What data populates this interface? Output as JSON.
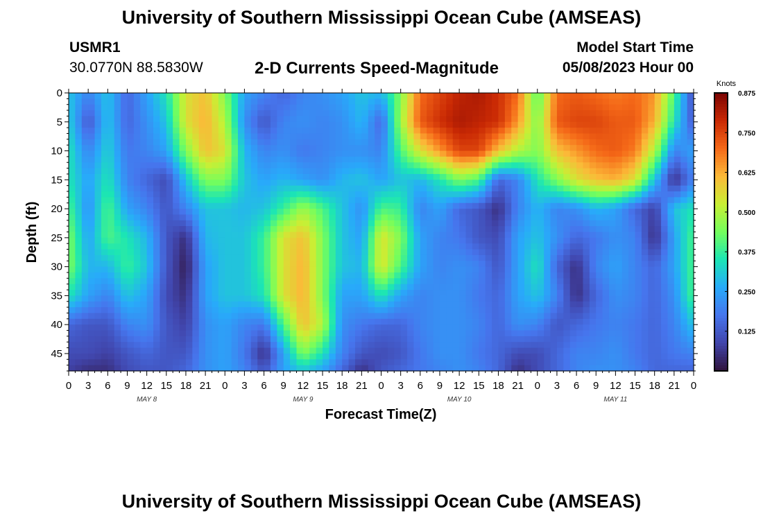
{
  "header": {
    "title": "University of Southern Mississippi Ocean Cube (AMSEAS)",
    "station": "USMR1",
    "coords": "30.0770N  88.5830W",
    "plot_title": "2-D Currents Speed-Magnitude",
    "model_start_label": "Model Start Time",
    "model_start_value": "05/08/2023 Hour 00"
  },
  "footer": {
    "title": "University of Southern Mississippi Ocean Cube (AMSEAS)"
  },
  "chart_data": {
    "type": "heatmap",
    "title": "2-D Currents Speed-Magnitude",
    "xlabel": "Forecast Time(Z)",
    "ylabel": "Depth (ft)",
    "x_range_hours": [
      0,
      96
    ],
    "y_range_ft": [
      0,
      48
    ],
    "x_tick_labels": [
      "0",
      "3",
      "6",
      "9",
      "12",
      "15",
      "18",
      "21",
      "0",
      "3",
      "6",
      "9",
      "12",
      "15",
      "18",
      "21",
      "0",
      "3",
      "6",
      "9",
      "12",
      "15",
      "18",
      "21",
      "0",
      "3",
      "6",
      "9",
      "12",
      "15",
      "18",
      "21",
      "0"
    ],
    "day_labels": [
      {
        "label": "MAY 8",
        "hour": 12
      },
      {
        "label": "MAY 9",
        "hour": 36
      },
      {
        "label": "MAY 10",
        "hour": 60
      },
      {
        "label": "MAY 11",
        "hour": 84
      }
    ],
    "y_tick_labels": [
      "0",
      "5",
      "10",
      "15",
      "20",
      "25",
      "30",
      "35",
      "40",
      "45"
    ],
    "colorbar": {
      "units": "Knots",
      "min": 0,
      "max": 0.875,
      "tick_labels": [
        "0.875",
        "0.750",
        "0.625",
        "0.500",
        "0.375",
        "0.250",
        "0.125"
      ],
      "tick_values": [
        0.875,
        0.75,
        0.625,
        0.5,
        0.375,
        0.25,
        0.125
      ]
    },
    "depths_ft": [
      0,
      5,
      10,
      15,
      20,
      25,
      30,
      35,
      40,
      45,
      48
    ],
    "hours": [
      0,
      3,
      6,
      9,
      12,
      15,
      18,
      21,
      24,
      27,
      30,
      33,
      36,
      39,
      42,
      45,
      48,
      51,
      54,
      57,
      60,
      63,
      66,
      69,
      72,
      75,
      78,
      81,
      84,
      87,
      90,
      93,
      96
    ],
    "values_knots": [
      [
        0.3,
        0.2,
        0.3,
        0.15,
        0.25,
        0.35,
        0.55,
        0.6,
        0.45,
        0.25,
        0.2,
        0.15,
        0.2,
        0.22,
        0.25,
        0.3,
        0.28,
        0.45,
        0.7,
        0.75,
        0.8,
        0.82,
        0.78,
        0.7,
        0.4,
        0.7,
        0.72,
        0.7,
        0.68,
        0.7,
        0.65,
        0.4,
        0.1
      ],
      [
        0.32,
        0.12,
        0.3,
        0.15,
        0.22,
        0.3,
        0.55,
        0.62,
        0.5,
        0.22,
        0.12,
        0.2,
        0.22,
        0.2,
        0.22,
        0.28,
        0.15,
        0.48,
        0.72,
        0.78,
        0.82,
        0.8,
        0.78,
        0.65,
        0.45,
        0.72,
        0.75,
        0.75,
        0.72,
        0.72,
        0.62,
        0.35,
        0.12
      ],
      [
        0.35,
        0.2,
        0.32,
        0.18,
        0.2,
        0.25,
        0.45,
        0.6,
        0.55,
        0.28,
        0.2,
        0.22,
        0.18,
        0.2,
        0.22,
        0.22,
        0.2,
        0.4,
        0.55,
        0.65,
        0.75,
        0.75,
        0.6,
        0.5,
        0.45,
        0.6,
        0.65,
        0.7,
        0.72,
        0.68,
        0.5,
        0.2,
        0.25
      ],
      [
        0.35,
        0.25,
        0.35,
        0.2,
        0.15,
        0.1,
        0.3,
        0.45,
        0.45,
        0.3,
        0.25,
        0.28,
        0.25,
        0.22,
        0.28,
        0.3,
        0.25,
        0.3,
        0.28,
        0.35,
        0.45,
        0.4,
        0.15,
        0.2,
        0.35,
        0.45,
        0.55,
        0.6,
        0.62,
        0.55,
        0.3,
        0.05,
        0.2
      ],
      [
        0.4,
        0.22,
        0.4,
        0.25,
        0.2,
        0.12,
        0.2,
        0.3,
        0.3,
        0.28,
        0.3,
        0.38,
        0.48,
        0.4,
        0.3,
        0.22,
        0.4,
        0.38,
        0.2,
        0.25,
        0.15,
        0.12,
        0.05,
        0.2,
        0.28,
        0.2,
        0.22,
        0.28,
        0.25,
        0.15,
        0.08,
        0.3,
        0.35
      ],
      [
        0.45,
        0.25,
        0.4,
        0.35,
        0.28,
        0.12,
        0.05,
        0.28,
        0.3,
        0.3,
        0.38,
        0.55,
        0.6,
        0.45,
        0.3,
        0.25,
        0.55,
        0.45,
        0.25,
        0.2,
        0.18,
        0.12,
        0.1,
        0.25,
        0.3,
        0.22,
        0.15,
        0.18,
        0.22,
        0.2,
        0.05,
        0.25,
        0.4
      ],
      [
        0.45,
        0.28,
        0.28,
        0.38,
        0.3,
        0.12,
        0.02,
        0.25,
        0.3,
        0.3,
        0.38,
        0.55,
        0.62,
        0.45,
        0.3,
        0.28,
        0.55,
        0.4,
        0.25,
        0.2,
        0.22,
        0.2,
        0.12,
        0.25,
        0.35,
        0.15,
        0.05,
        0.2,
        0.25,
        0.2,
        0.15,
        0.25,
        0.4
      ],
      [
        0.35,
        0.25,
        0.2,
        0.3,
        0.25,
        0.1,
        0.05,
        0.25,
        0.3,
        0.3,
        0.35,
        0.55,
        0.62,
        0.45,
        0.25,
        0.25,
        0.35,
        0.25,
        0.2,
        0.22,
        0.22,
        0.18,
        0.15,
        0.25,
        0.3,
        0.2,
        0.05,
        0.15,
        0.22,
        0.2,
        0.15,
        0.22,
        0.4
      ],
      [
        0.15,
        0.12,
        0.12,
        0.2,
        0.22,
        0.12,
        0.08,
        0.22,
        0.25,
        0.2,
        0.18,
        0.4,
        0.6,
        0.5,
        0.22,
        0.18,
        0.15,
        0.15,
        0.2,
        0.22,
        0.22,
        0.2,
        0.15,
        0.22,
        0.2,
        0.12,
        0.15,
        0.18,
        0.2,
        0.18,
        0.15,
        0.2,
        0.3
      ],
      [
        0.1,
        0.1,
        0.08,
        0.12,
        0.15,
        0.12,
        0.12,
        0.22,
        0.25,
        0.18,
        0.05,
        0.25,
        0.45,
        0.35,
        0.2,
        0.12,
        0.1,
        0.12,
        0.18,
        0.22,
        0.22,
        0.18,
        0.15,
        0.1,
        0.1,
        0.15,
        0.2,
        0.2,
        0.22,
        0.18,
        0.15,
        0.18,
        0.2
      ],
      [
        0.08,
        0.05,
        0.05,
        0.1,
        0.12,
        0.12,
        0.15,
        0.22,
        0.25,
        0.2,
        0.12,
        0.25,
        0.3,
        0.25,
        0.15,
        0.05,
        0.12,
        0.15,
        0.18,
        0.2,
        0.22,
        0.2,
        0.15,
        0.05,
        0.1,
        0.15,
        0.2,
        0.22,
        0.22,
        0.2,
        0.15,
        0.15,
        0.15
      ]
    ]
  }
}
